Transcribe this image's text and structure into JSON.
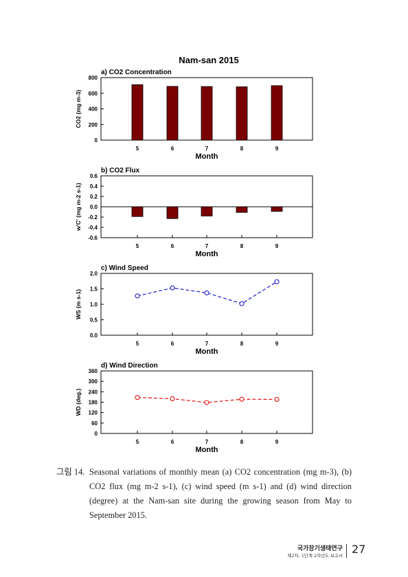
{
  "page_title": "Nam-san 2015",
  "chart_data": [
    {
      "type": "bar",
      "title": "a) CO2 Concentration",
      "xlabel": "Month",
      "ylabel": "CO2 (mg m-3)",
      "categories": [
        5,
        6,
        7,
        8,
        9
      ],
      "values": [
        710,
        688,
        686,
        683,
        697
      ],
      "ylim": [
        0,
        800
      ],
      "yticks": [
        "0",
        "200",
        "400",
        "600",
        "800"
      ],
      "color": "#7a0000"
    },
    {
      "type": "bar",
      "title": "b) CO2 Flux",
      "xlabel": "Month",
      "ylabel": "w'C' (mg m-2 s-1)",
      "categories": [
        5,
        6,
        7,
        8,
        9
      ],
      "values": [
        -0.19,
        -0.23,
        -0.18,
        -0.11,
        -0.09
      ],
      "ylim": [
        -0.6,
        0.6
      ],
      "yticks": [
        "-0.6",
        "-0.4",
        "-0.2",
        "0.0",
        "0.2",
        "0.4",
        "0.6"
      ],
      "color": "#7a0000"
    },
    {
      "type": "line",
      "title": "c) Wind Speed",
      "xlabel": "Month",
      "ylabel": "WS (m s-1)",
      "categories": [
        5,
        6,
        7,
        8,
        9
      ],
      "values": [
        1.27,
        1.53,
        1.37,
        1.02,
        1.73
      ],
      "ylim": [
        0,
        2.0
      ],
      "yticks": [
        "0.0",
        "0.5",
        "1.0",
        "1.5",
        "2.0"
      ],
      "color": "#1a1acc"
    },
    {
      "type": "line",
      "title": "d) Wind Direction",
      "xlabel": "Month",
      "ylabel": "WD (deg.)",
      "categories": [
        5,
        6,
        7,
        8,
        9
      ],
      "values": [
        207,
        200,
        178,
        197,
        196
      ],
      "ylim": [
        0,
        360
      ],
      "yticks": [
        "0",
        "60",
        "120",
        "180",
        "240",
        "300",
        "360"
      ],
      "color": "#dd1111"
    }
  ],
  "caption": {
    "label": "그림 14.",
    "text": "Seasonal variations of monthly mean (a) CO2 concentration (mg m-3), (b) CO2 flux (mg m-2 s-1), (c) wind speed (m s-1) and (d) wind direction (degree) at the Nam-san site during the growing season from May to September 2015."
  },
  "footer": {
    "organization": "국가장기생태연구",
    "subtitle": "제2차, 1단계 2차년도 보고서",
    "page_number": "27"
  }
}
